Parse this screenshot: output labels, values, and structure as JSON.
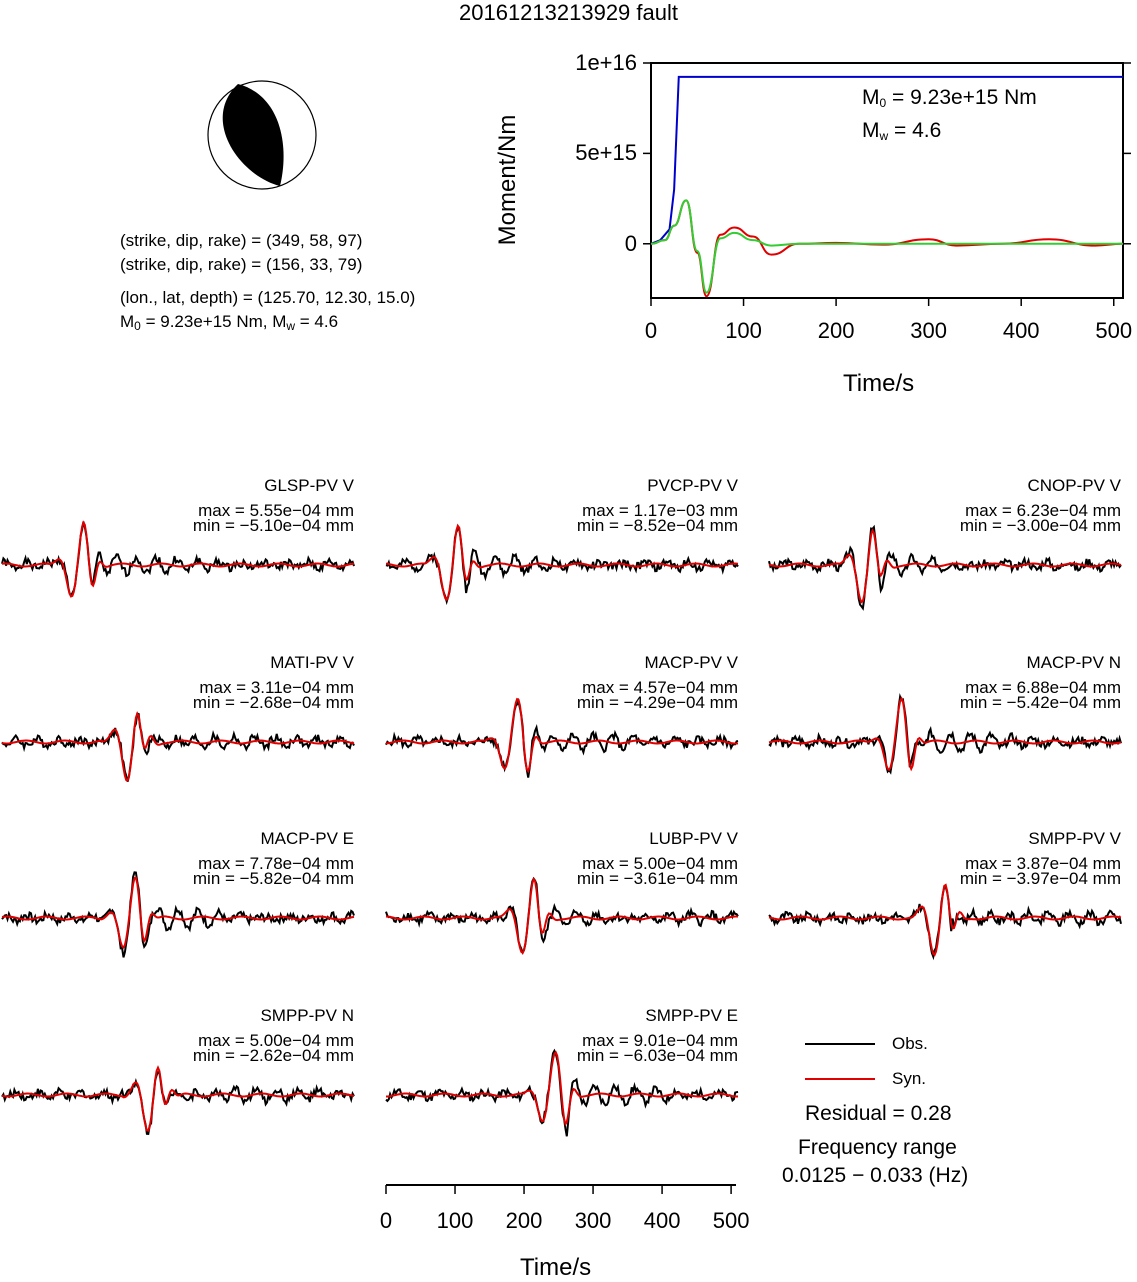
{
  "page_title": "20161213213929 fault",
  "event_info": {
    "plane1": "(strike, dip, rake) = (349, 58, 97)",
    "plane2": "(strike, dip, rake) = (156, 33, 79)",
    "location": "(lon., lat, depth) = (125.70, 12.30, 15.0)",
    "m0_text": "M",
    "m0_sub": "0",
    "m0_rest": " = 9.23e+15 Nm, M",
    "mw_sub": "w",
    "mw_rest": " = 4.6"
  },
  "moment_annot": {
    "m0_label": "M",
    "m0_sub": "0",
    "m0_value": " = 9.23e+15 Nm",
    "mw_label": "M",
    "mw_sub": "w",
    "mw_value": " = 4.6"
  },
  "colors": {
    "observed": "#000000",
    "synthetic": "#e00000",
    "moment": "#0000cc",
    "rate_fit": "#33cc33"
  },
  "chart_data": [
    {
      "type": "line",
      "title": "",
      "xlabel": "Time/s",
      "ylabel": "Moment/Nm",
      "xlim": [
        0,
        510
      ],
      "ylim": [
        -3000000000000000.0,
        1e+16
      ],
      "xticks": [
        "0",
        "100",
        "200",
        "300",
        "400",
        "500"
      ],
      "yticks": [
        "0",
        "5e+15",
        "1e+16"
      ],
      "series": [
        {
          "color": "blue",
          "x": [
            0,
            10,
            20,
            25,
            30,
            510
          ],
          "y": [
            0,
            200000000000000.0,
            800000000000000.0,
            3000000000000000.0,
            9230000000000000.0,
            9230000000000000.0
          ]
        },
        {
          "color": "red",
          "x": [
            0,
            15,
            25,
            38,
            50,
            60,
            75,
            90,
            110,
            130,
            160,
            200,
            250,
            300,
            330,
            380,
            430,
            480,
            510
          ],
          "y": [
            0,
            200000000000000.0,
            1000000000000000.0,
            2400000000000000.0,
            -500000000000000.0,
            -2900000000000000.0,
            500000000000000.0,
            900000000000000.0,
            400000000000000.0,
            -600000000000000.0,
            0,
            50000000000000.0,
            -50000000000000.0,
            250000000000000.0,
            -100000000000000.0,
            0,
            250000000000000.0,
            -100000000000000.0,
            0
          ]
        },
        {
          "color": "green",
          "x": [
            0,
            15,
            25,
            38,
            50,
            60,
            75,
            90,
            110,
            130,
            160,
            200,
            510
          ],
          "y": [
            0,
            200000000000000.0,
            1000000000000000.0,
            2400000000000000.0,
            -400000000000000.0,
            -2700000000000000.0,
            300000000000000.0,
            600000000000000.0,
            200000000000000.0,
            -100000000000000.0,
            0,
            0,
            0
          ]
        }
      ]
    },
    {
      "type": "line",
      "title": "",
      "xlabel": "Time/s",
      "xlim": [
        0,
        510
      ],
      "xticks": [
        "0",
        "100",
        "200",
        "300",
        "400",
        "500"
      ],
      "legend": {
        "position": "bottom-right",
        "entries": [
          "Obs.",
          "Syn."
        ]
      },
      "traces": [
        {
          "name": "GLSP-PV V",
          "max": "max = 5.55e−04 mm",
          "min": "min = −5.10e−04 mm",
          "arrival_s": 110
        },
        {
          "name": "PVCP-PV V",
          "max": "max = 1.17e−03 mm",
          "min": "min = −8.52e−04 mm",
          "arrival_s": 95
        },
        {
          "name": "CNOP-PV V",
          "max": "max = 6.23e−04 mm",
          "min": "min = −3.00e−04 mm",
          "arrival_s": 140
        },
        {
          "name": "MATI-PV V",
          "max": "max = 3.11e−04 mm",
          "min": "min = −2.68e−04 mm",
          "arrival_s": 185
        },
        {
          "name": "MACP-PV V",
          "max": "max = 4.57e−04 mm",
          "min": "min = −4.29e−04 mm",
          "arrival_s": 185
        },
        {
          "name": "MACP-PV N",
          "max": "max = 6.88e−04 mm",
          "min": "min = −5.42e−04 mm",
          "arrival_s": 185
        },
        {
          "name": "MACP-PV E",
          "max": "max = 7.78e−04 mm",
          "min": "min = −5.82e−04 mm",
          "arrival_s": 185
        },
        {
          "name": "LUBP-PV V",
          "max": "max = 5.00e−04 mm",
          "min": "min = −3.61e−04 mm",
          "arrival_s": 205
        },
        {
          "name": "SMPP-PV V",
          "max": "max = 3.87e−04 mm",
          "min": "min = −3.97e−04 mm",
          "arrival_s": 245
        },
        {
          "name": "SMPP-PV N",
          "max": "max = 5.00e−04 mm",
          "min": "min = −2.62e−04 mm",
          "arrival_s": 215
        },
        {
          "name": "SMPP-PV E",
          "max": "max = 9.01e−04 mm",
          "min": "min = −6.03e−04 mm",
          "arrival_s": 240
        }
      ]
    }
  ],
  "legend": {
    "obs_label": "Obs.",
    "syn_label": "Syn."
  },
  "residual": "Residual = 0.28",
  "freq_title": "Frequency range",
  "freq_value": "0.0125 − 0.033 (Hz)"
}
